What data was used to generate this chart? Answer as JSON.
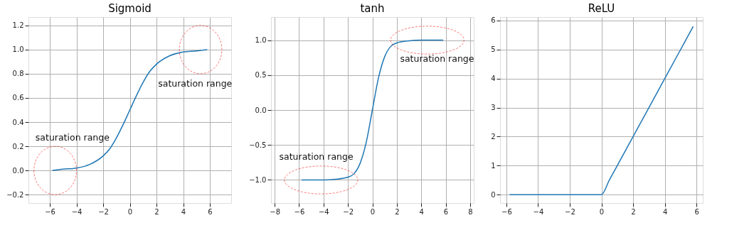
{
  "chart_data": [
    {
      "type": "line",
      "title": "Sigmoid",
      "grid": true,
      "line_style": "solid",
      "x": [
        -5.8,
        -5,
        -4,
        -3,
        -2,
        -1.5,
        -1,
        -0.5,
        0,
        0.5,
        1,
        1.5,
        2,
        3,
        4,
        5,
        5.8
      ],
      "series": [
        {
          "color": "#1f77b4",
          "values": [
            0.0,
            0.01,
            0.02,
            0.05,
            0.12,
            0.18,
            0.27,
            0.38,
            0.5,
            0.62,
            0.73,
            0.82,
            0.88,
            0.95,
            0.98,
            0.99,
            1.0
          ]
        }
      ],
      "xlim": [
        -7.6,
        7.6
      ],
      "ylim": [
        -0.27,
        1.27
      ],
      "xticks": [
        {
          "value": -6,
          "label": "−6"
        },
        {
          "value": -4,
          "label": "−4"
        },
        {
          "value": -2,
          "label": "−2"
        },
        0,
        2,
        4,
        6
      ],
      "yticks": [
        {
          "value": -0.2,
          "label": "−0.2"
        },
        {
          "value": 0,
          "label": "0.0"
        },
        0.2,
        0.4,
        0.6,
        0.8,
        {
          "value": 1,
          "label": "1.0"
        },
        1.2
      ],
      "annotations": [
        "saturation range",
        "saturation range"
      ]
    },
    {
      "type": "line",
      "title": "tanh",
      "grid": true,
      "line_style": "solid",
      "x": [
        -5.8,
        -4,
        -3,
        -2,
        -1.5,
        -1,
        -0.5,
        0,
        0.5,
        1,
        1.5,
        2,
        3,
        4,
        5.8
      ],
      "series": [
        {
          "color": "#1f77b4",
          "values": [
            -1.0,
            -1.0,
            -0.99,
            -0.96,
            -0.91,
            -0.76,
            -0.46,
            0,
            0.46,
            0.76,
            0.91,
            0.96,
            0.99,
            1.0,
            1.0
          ]
        }
      ],
      "xlim": [
        -8.3,
        8.3
      ],
      "ylim": [
        -1.33,
        1.33
      ],
      "xticks": [
        {
          "value": -8,
          "label": "−8"
        },
        {
          "value": -6,
          "label": "−6"
        },
        {
          "value": -4,
          "label": "−4"
        },
        {
          "value": -2,
          "label": "−2"
        },
        0,
        2,
        4,
        6,
        8
      ],
      "yticks": [
        {
          "value": -1,
          "label": "−1.0"
        },
        {
          "value": -0.5,
          "label": "−0.5"
        },
        {
          "value": 0,
          "label": "0.0"
        },
        0.5,
        {
          "value": 1,
          "label": "1.0"
        }
      ],
      "annotations": [
        "saturation range",
        "saturation range"
      ]
    },
    {
      "type": "line",
      "title": "ReLU",
      "grid": true,
      "line_style": "solid",
      "x": [
        -5.8,
        -4,
        -2,
        -0.5,
        0,
        0.5,
        1,
        2,
        3,
        4,
        5,
        5.8
      ],
      "series": [
        {
          "color": "#1f77b4",
          "values": [
            0,
            0,
            0,
            0,
            0,
            0.5,
            1,
            2,
            3,
            4,
            5,
            5.8
          ]
        }
      ],
      "xlim": [
        -6.4,
        6.4
      ],
      "ylim": [
        -0.29,
        6.12
      ],
      "xticks": [
        {
          "value": -6,
          "label": "−6"
        },
        {
          "value": -4,
          "label": "−4"
        },
        {
          "value": -2,
          "label": "−2"
        },
        0,
        2,
        4,
        6
      ],
      "yticks": [
        0,
        1,
        2,
        3,
        4,
        5,
        6
      ]
    }
  ]
}
